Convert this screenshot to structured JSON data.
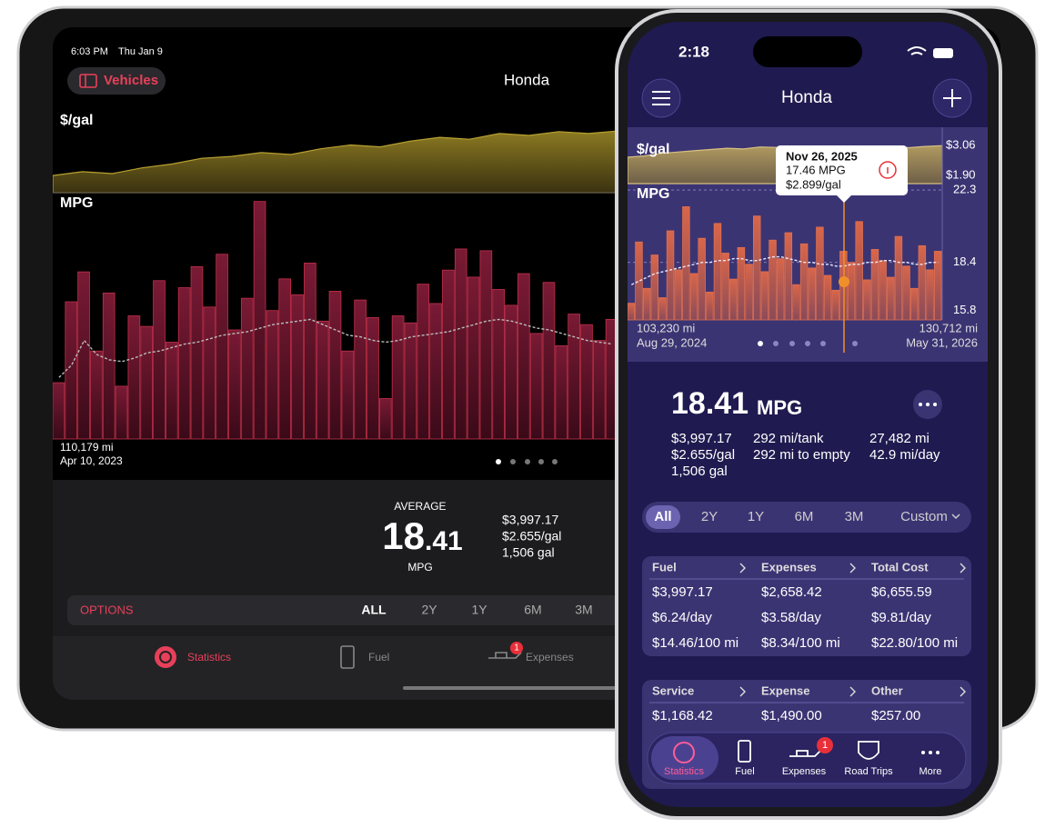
{
  "ipad": {
    "status_time": "6:03 PM",
    "status_date": "Thu Jan 9",
    "vehicles_button": "Vehicles",
    "title": "Honda",
    "price_chart": {
      "type": "area",
      "label": "$/gal",
      "color": "#8c7a22",
      "values": [
        1.95,
        2.05,
        2.0,
        2.15,
        2.25,
        2.4,
        2.45,
        2.55,
        2.5,
        2.65,
        2.75,
        2.7,
        2.85,
        2.95,
        2.9,
        3.05,
        3.0,
        3.1,
        3.05,
        3.12
      ],
      "ylim": [
        1.5,
        3.5
      ]
    },
    "mpg_chart": {
      "type": "bar",
      "label": "MPG",
      "color": "#6b1630",
      "values": [
        15.2,
        19.8,
        21.5,
        17.0,
        20.3,
        15.0,
        19.0,
        18.4,
        21.0,
        17.5,
        20.6,
        21.8,
        19.5,
        22.5,
        18.2,
        20.0,
        25.5,
        19.3,
        21.1,
        20.2,
        22.0,
        18.7,
        20.4,
        17.0,
        19.9,
        18.9,
        14.3,
        19.0,
        18.6,
        20.8,
        19.7,
        21.6,
        22.8,
        21.2,
        22.7,
        20.5,
        19.6,
        21.4,
        18.0,
        20.9,
        17.3,
        19.1,
        18.5,
        17.6,
        18.8
      ],
      "average": [
        15.5,
        16.2,
        17.6,
        16.8,
        16.5,
        16.4,
        16.6,
        16.9,
        17.0,
        17.2,
        17.4,
        17.5,
        17.7,
        17.9,
        18.0,
        18.1,
        18.3,
        18.5,
        18.6,
        18.7,
        18.8,
        18.5,
        18.2,
        17.9,
        17.8,
        17.6,
        17.5,
        17.6,
        17.8,
        17.9,
        18.0,
        18.1,
        18.3,
        18.5,
        18.7,
        18.8,
        18.7,
        18.5,
        18.3,
        18.2,
        18.0,
        17.8,
        17.6,
        17.5,
        17.4
      ],
      "ylim": [
        12,
        26
      ]
    },
    "start_odometer": "110,179 mi",
    "start_date": "Apr 10, 2023",
    "summary": {
      "caption": "AVERAGE",
      "whole": "18",
      "fraction": ".41",
      "unit": "MPG",
      "stats": [
        "$3,997.17",
        "$2.655/gal",
        "1,506 gal"
      ]
    },
    "options": {
      "label": "OPTIONS",
      "ranges": [
        "ALL",
        "2Y",
        "1Y",
        "6M",
        "3M"
      ]
    },
    "tabs": [
      {
        "label": "Statistics"
      },
      {
        "label": "Fuel"
      },
      {
        "label": "Expenses",
        "badge": "1"
      }
    ]
  },
  "iphone": {
    "status_time": "2:18",
    "title": "Honda",
    "price_chart": {
      "type": "area",
      "label": "$/gal",
      "color": "#a8925c",
      "values": [
        2.6,
        2.65,
        2.75,
        2.8,
        2.85,
        2.9,
        2.95,
        2.92,
        3.0,
        2.98,
        2.95,
        3.02,
        2.97,
        2.93,
        2.9,
        2.95,
        3.0,
        2.97,
        3.02,
        3.05
      ],
      "ylim": [
        1.58,
        3.41
      ],
      "yticks": [
        {
          "value": 3.06,
          "label": "$3.06"
        },
        {
          "value": 1.9,
          "label": "$1.90"
        }
      ]
    },
    "mpg_chart": {
      "type": "bar",
      "label": "MPG",
      "color": "#c85a44",
      "values": [
        16.2,
        19.5,
        17.0,
        18.8,
        16.5,
        20.1,
        18.0,
        21.4,
        17.8,
        19.7,
        16.8,
        20.5,
        18.9,
        17.5,
        19.2,
        18.3,
        20.9,
        17.9,
        19.6,
        18.6,
        20.0,
        17.2,
        19.4,
        18.1,
        20.3,
        17.7,
        16.9,
        19.0,
        18.4,
        20.6,
        17.46,
        19.1,
        18.5,
        17.6,
        19.8,
        18.2,
        17.0,
        19.3,
        18.0,
        19.0
      ],
      "average": [
        17.2,
        17.4,
        17.6,
        17.8,
        17.9,
        18.0,
        18.1,
        18.2,
        18.3,
        18.4,
        18.4,
        18.5,
        18.5,
        18.6,
        18.6,
        18.5,
        18.5,
        18.6,
        18.7,
        18.7,
        18.6,
        18.5,
        18.4,
        18.4,
        18.3,
        18.3,
        18.2,
        18.2,
        18.3,
        18.3,
        18.4,
        18.4,
        18.5,
        18.5,
        18.4,
        18.4,
        18.3,
        18.3,
        18.4,
        18.4
      ],
      "ylim": [
        15.3,
        22.5
      ],
      "yticks": [
        22.3,
        18.4,
        15.8
      ]
    },
    "tooltip": {
      "date": "Nov 26, 2025",
      "mpg": "17.46 MPG",
      "price": "$2.899/gal"
    },
    "start_odometer": "103,230 mi",
    "start_date": "Aug 29, 2024",
    "end_odometer": "130,712 mi",
    "end_date": "May 31, 2026",
    "summary": {
      "value": "18.41",
      "unit": "MPG",
      "stats": [
        "$3,997.17",
        "$2.655/gal",
        "1,506 gal",
        "292 mi/tank",
        "292 mi to empty",
        "27,482 mi",
        "42.9 mi/day"
      ]
    },
    "ranges": [
      "All",
      "2Y",
      "1Y",
      "6M",
      "3M",
      "Custom"
    ],
    "cost_table": {
      "headers": [
        "Fuel",
        "Expenses",
        "Total Cost"
      ],
      "rows": [
        [
          "$3,997.17",
          "$2,658.42",
          "$6,655.59"
        ],
        [
          "$6.24/day",
          "$3.58/day",
          "$9.81/day"
        ],
        [
          "$14.46/100 mi",
          "$8.34/100 mi",
          "$22.80/100 mi"
        ]
      ]
    },
    "expense_table": {
      "headers": [
        "Service",
        "Expense",
        "Other"
      ],
      "rows": [
        [
          "$1,168.42",
          "$1,490.00",
          "$257.00"
        ]
      ]
    },
    "tabs": [
      {
        "label": "Statistics"
      },
      {
        "label": "Fuel"
      },
      {
        "label": "Expenses",
        "badge": "1"
      },
      {
        "label": "Road Trips"
      },
      {
        "label": "More"
      }
    ]
  }
}
